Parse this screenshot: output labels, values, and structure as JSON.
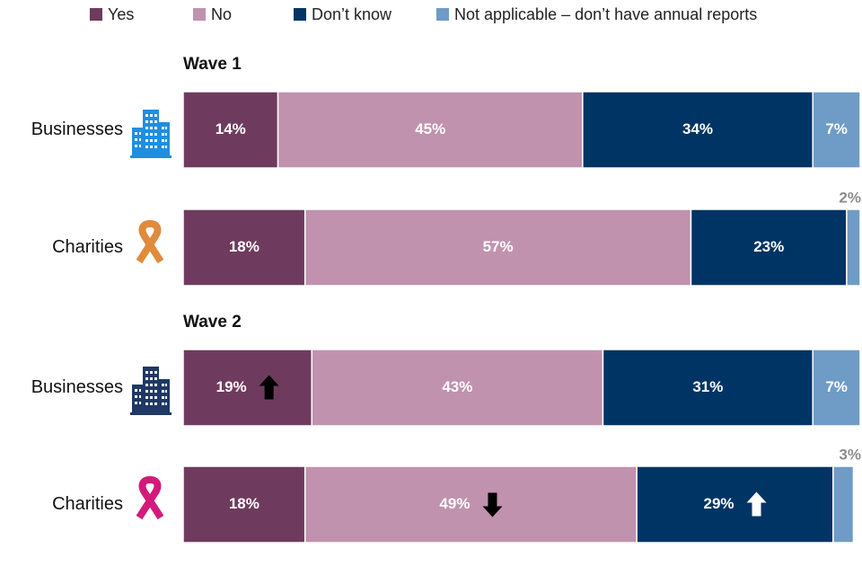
{
  "chart_data": {
    "type": "bar",
    "orientation": "horizontal",
    "stacked": true,
    "categories": [
      "Businesses",
      "Charities",
      "Businesses",
      "Charities"
    ],
    "group_labels": [
      "Wave 1",
      null,
      "Wave 2",
      null
    ],
    "xlim": [
      0,
      100
    ],
    "series": [
      {
        "name": "Yes",
        "color": "#6e3b5e",
        "arrow_color": "#000000",
        "values": [
          14,
          18,
          19,
          18
        ],
        "value_labels": [
          "14%",
          "18%",
          "19%",
          "18%"
        ],
        "significance": [
          null,
          null,
          "up",
          null
        ]
      },
      {
        "name": "No",
        "color": "#c092ae",
        "arrow_color": "#000000",
        "values": [
          45,
          57,
          43,
          49
        ],
        "value_labels": [
          "45%",
          "57%",
          "43%",
          "49%"
        ],
        "significance": [
          null,
          null,
          null,
          "down"
        ]
      },
      {
        "name": "Don’t know",
        "color": "#003464",
        "arrow_color": "#ffffff",
        "values": [
          34,
          23,
          31,
          29
        ],
        "value_labels": [
          "34%",
          "23%",
          "31%",
          "29%"
        ],
        "significance": [
          null,
          null,
          null,
          "up"
        ]
      },
      {
        "name": "Not applicable – don’t have annual reports",
        "color": "#6f9bc7",
        "values": [
          7,
          2,
          7,
          3
        ],
        "value_labels": [
          "7%",
          "2%",
          "7%",
          "3%"
        ]
      }
    ]
  }
}
